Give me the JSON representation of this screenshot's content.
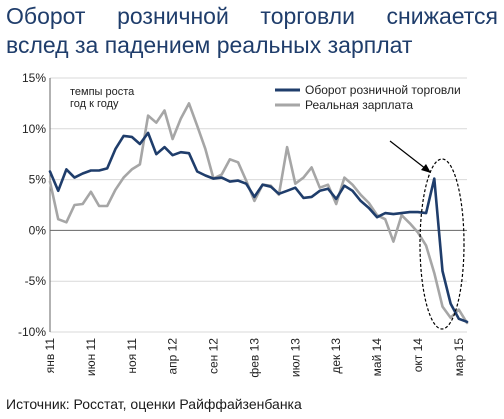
{
  "title": {
    "line1": "Оборот розничной торговли снижается",
    "line2": "вслед за падением реальных зарплат"
  },
  "source": "Источник: Росстат, оценки Райффайзенбанка",
  "colors": {
    "retail": "#1f3d6b",
    "wage": "#a6a6a6",
    "title": "#1f3d6b"
  },
  "chart_data": {
    "type": "line",
    "ylim": [
      -10,
      15
    ],
    "yticks": [
      15,
      10,
      5,
      0,
      -5,
      -10
    ],
    "ytick_labels": [
      "15%",
      "10%",
      "5%",
      "0%",
      "-5%",
      "-10%"
    ],
    "x_range": [
      "2011-01",
      "2015-04"
    ],
    "xtick_labels": [
      {
        "label": "янв 11",
        "x": "2011-01"
      },
      {
        "label": "июн 11",
        "x": "2011-06"
      },
      {
        "label": "ноя 11",
        "x": "2011-11"
      },
      {
        "label": "апр 12",
        "x": "2012-04"
      },
      {
        "label": "сен 12",
        "x": "2012-09"
      },
      {
        "label": "фев 13",
        "x": "2013-02"
      },
      {
        "label": "июл 13",
        "x": "2013-07"
      },
      {
        "label": "дек 13",
        "x": "2013-12"
      },
      {
        "label": "май 14",
        "x": "2014-05"
      },
      {
        "label": "окт 14",
        "x": "2014-10"
      },
      {
        "label": "мар 15",
        "x": "2015-03"
      }
    ],
    "annotation": "темпы роста\nгод к году",
    "legend": {
      "position": "top-right"
    },
    "series": [
      {
        "name": "Оборот розничной торговли",
        "color": "#1f3d6b",
        "x": [
          "2011-01",
          "2011-02",
          "2011-03",
          "2011-04",
          "2011-05",
          "2011-06",
          "2011-07",
          "2011-08",
          "2011-09",
          "2011-10",
          "2011-11",
          "2011-12",
          "2012-01",
          "2012-02",
          "2012-03",
          "2012-04",
          "2012-05",
          "2012-06",
          "2012-07",
          "2012-08",
          "2012-09",
          "2012-10",
          "2012-11",
          "2012-12",
          "2013-01",
          "2013-02",
          "2013-03",
          "2013-04",
          "2013-05",
          "2013-06",
          "2013-07",
          "2013-08",
          "2013-09",
          "2013-10",
          "2013-11",
          "2013-12",
          "2014-01",
          "2014-02",
          "2014-03",
          "2014-04",
          "2014-05",
          "2014-06",
          "2014-07",
          "2014-08",
          "2014-09",
          "2014-10",
          "2014-11",
          "2014-12",
          "2015-01",
          "2015-02",
          "2015-03",
          "2015-04"
        ],
        "values": [
          5.8,
          3.9,
          6.0,
          5.2,
          5.6,
          5.9,
          5.9,
          6.1,
          8.0,
          9.3,
          9.2,
          8.5,
          9.6,
          7.5,
          8.2,
          7.4,
          7.7,
          7.6,
          5.8,
          5.4,
          5.1,
          5.2,
          4.8,
          4.9,
          4.6,
          3.3,
          4.5,
          4.3,
          3.6,
          3.9,
          4.2,
          3.2,
          3.3,
          3.9,
          4.1,
          3.1,
          4.4,
          3.9,
          2.9,
          2.2,
          1.3,
          1.7,
          1.6,
          1.7,
          1.8,
          1.8,
          1.7,
          5.1,
          -4.0,
          -7.2,
          -8.7,
          -9.0
        ]
      },
      {
        "name": "Реальная зарплата",
        "color": "#a6a6a6",
        "x": [
          "2011-01",
          "2011-02",
          "2011-03",
          "2011-04",
          "2011-05",
          "2011-06",
          "2011-07",
          "2011-08",
          "2011-09",
          "2011-10",
          "2011-11",
          "2011-12",
          "2012-01",
          "2012-02",
          "2012-03",
          "2012-04",
          "2012-05",
          "2012-06",
          "2012-07",
          "2012-08",
          "2012-09",
          "2012-10",
          "2012-11",
          "2012-12",
          "2013-01",
          "2013-02",
          "2013-03",
          "2013-04",
          "2013-05",
          "2013-06",
          "2013-07",
          "2013-08",
          "2013-09",
          "2013-10",
          "2013-11",
          "2013-12",
          "2014-01",
          "2014-02",
          "2014-03",
          "2014-04",
          "2014-05",
          "2014-06",
          "2014-07",
          "2014-08",
          "2014-09",
          "2014-10",
          "2014-11",
          "2014-12",
          "2015-01",
          "2015-02",
          "2015-03",
          "2015-04"
        ],
        "values": [
          4.8,
          1.1,
          0.8,
          2.5,
          2.6,
          3.8,
          2.4,
          2.4,
          4.0,
          5.2,
          6.0,
          6.5,
          11.3,
          10.6,
          11.8,
          9.0,
          11.0,
          12.5,
          10.3,
          8.0,
          5.1,
          5.5,
          7.0,
          6.7,
          4.9,
          2.9,
          4.5,
          4.4,
          3.5,
          8.2,
          4.6,
          5.2,
          6.2,
          4.2,
          4.5,
          2.6,
          5.2,
          4.5,
          3.5,
          2.7,
          1.5,
          1.1,
          -1.1,
          1.5,
          0.7,
          -0.2,
          -1.5,
          -4.2,
          -7.5,
          -8.6,
          -7.8,
          -9.1
        ]
      }
    ]
  }
}
